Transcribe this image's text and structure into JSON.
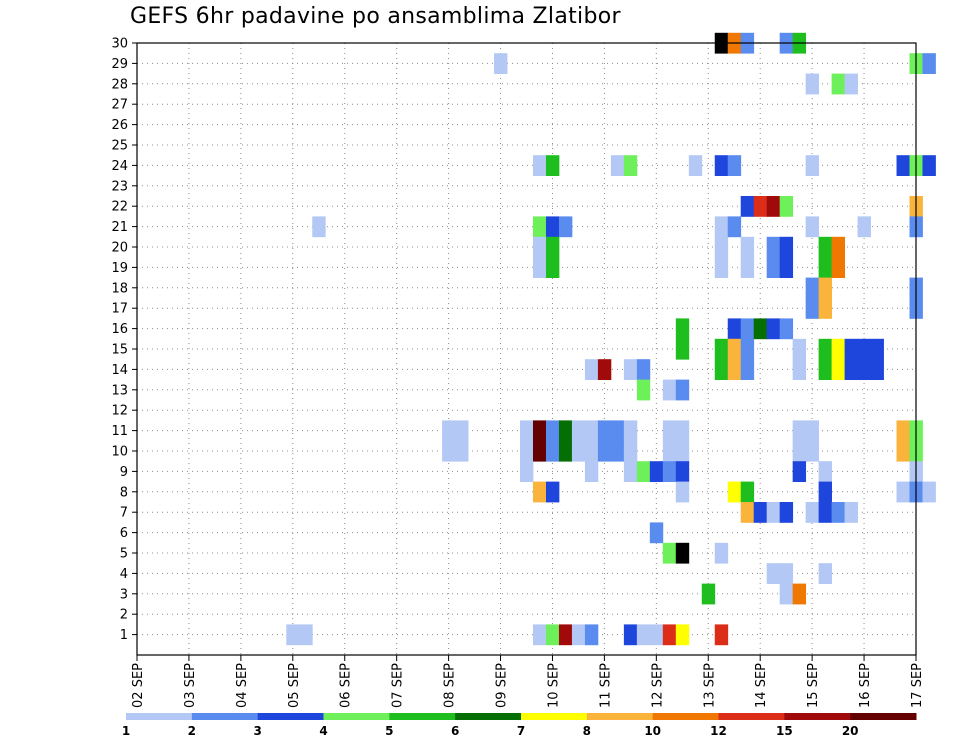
{
  "chart_data": {
    "type": "heatmap",
    "title": "GEFS 6hr padavine po ansamblima Zlatibor",
    "xlabel": "",
    "ylabel": "",
    "y_ticks": [
      1,
      2,
      3,
      4,
      5,
      6,
      7,
      8,
      9,
      10,
      11,
      12,
      13,
      14,
      15,
      16,
      17,
      18,
      19,
      20,
      21,
      22,
      23,
      24,
      25,
      26,
      27,
      28,
      29,
      30
    ],
    "x_ticks": [
      "02 SEP",
      "03 SEP",
      "04 SEP",
      "05 SEP",
      "06 SEP",
      "07 SEP",
      "08 SEP",
      "09 SEP",
      "10 SEP",
      "11 SEP",
      "12 SEP",
      "13 SEP",
      "14 SEP",
      "15 SEP",
      "16 SEP",
      "17 SEP"
    ],
    "grid": true,
    "colorbar": {
      "labels": [
        "1",
        "2",
        "3",
        "4",
        "5",
        "6",
        "7",
        "8",
        "10",
        "12",
        "15",
        "20"
      ],
      "colors": [
        "#b4c8f5",
        "#5a8cf0",
        "#1e46dc",
        "#6ef05a",
        "#1ebe1e",
        "#056e05",
        "#ffff00",
        "#fab43c",
        "#f07800",
        "#dc2d19",
        "#a00a0a",
        "#640000"
      ]
    },
    "cells": [
      [
        30,
        13.25,
        13
      ],
      [
        30,
        13.5,
        9
      ],
      [
        30,
        13.75,
        2
      ],
      [
        30,
        14.5,
        2
      ],
      [
        30,
        14.75,
        5
      ],
      [
        29,
        9.0,
        1
      ],
      [
        29,
        17.0,
        4
      ],
      [
        29,
        17.25,
        2
      ],
      [
        28,
        15.0,
        1
      ],
      [
        28,
        15.5,
        4
      ],
      [
        28,
        15.75,
        1
      ],
      [
        24,
        9.75,
        1
      ],
      [
        24,
        10.0,
        5
      ],
      [
        24,
        11.25,
        1
      ],
      [
        24,
        11.5,
        4
      ],
      [
        24,
        12.75,
        1
      ],
      [
        24,
        13.25,
        3
      ],
      [
        24,
        13.5,
        2
      ],
      [
        24,
        15.0,
        1
      ],
      [
        24,
        16.75,
        3
      ],
      [
        24,
        17.0,
        4
      ],
      [
        24,
        17.25,
        3
      ],
      [
        22,
        13.75,
        3
      ],
      [
        22,
        14.0,
        10
      ],
      [
        22,
        14.25,
        11
      ],
      [
        22,
        14.5,
        4
      ],
      [
        22,
        17.0,
        8
      ],
      [
        21,
        5.5,
        1
      ],
      [
        21,
        9.75,
        4
      ],
      [
        21,
        10.0,
        3
      ],
      [
        21,
        10.25,
        2
      ],
      [
        21,
        13.25,
        1
      ],
      [
        21,
        13.5,
        2
      ],
      [
        21,
        15.0,
        1
      ],
      [
        21,
        16.0,
        1
      ],
      [
        21,
        17.0,
        2
      ],
      [
        20,
        9.75,
        1
      ],
      [
        20,
        10.0,
        5
      ],
      [
        20,
        13.25,
        1
      ],
      [
        20,
        13.75,
        1
      ],
      [
        20,
        14.25,
        2
      ],
      [
        20,
        14.5,
        3
      ],
      [
        20,
        15.25,
        5
      ],
      [
        20,
        15.5,
        9
      ],
      [
        19,
        9.75,
        1
      ],
      [
        19,
        10.0,
        5
      ],
      [
        19,
        13.25,
        1
      ],
      [
        19,
        13.75,
        1
      ],
      [
        19,
        14.25,
        2
      ],
      [
        19,
        14.5,
        3
      ],
      [
        19,
        15.25,
        5
      ],
      [
        19,
        15.5,
        9
      ],
      [
        18,
        15.0,
        2
      ],
      [
        18,
        15.25,
        8
      ],
      [
        18,
        17.0,
        2
      ],
      [
        17,
        15.0,
        2
      ],
      [
        17,
        15.25,
        8
      ],
      [
        17,
        17.0,
        2
      ],
      [
        16,
        12.5,
        5
      ],
      [
        16,
        13.5,
        3
      ],
      [
        16,
        13.75,
        2
      ],
      [
        16,
        14.0,
        6
      ],
      [
        16,
        14.25,
        3
      ],
      [
        16,
        14.5,
        2
      ],
      [
        15,
        12.5,
        5
      ],
      [
        15,
        13.25,
        5
      ],
      [
        15,
        13.5,
        8
      ],
      [
        15,
        13.75,
        2
      ],
      [
        15,
        14.75,
        1
      ],
      [
        15,
        15.25,
        5
      ],
      [
        15,
        15.5,
        7
      ],
      [
        15,
        15.75,
        3
      ],
      [
        15,
        16.0,
        3
      ],
      [
        15,
        16.25,
        3
      ],
      [
        14,
        10.75,
        1
      ],
      [
        14,
        11.0,
        11
      ],
      [
        14,
        11.5,
        1
      ],
      [
        14,
        11.75,
        2
      ],
      [
        14,
        13.25,
        5
      ],
      [
        14,
        13.5,
        8
      ],
      [
        14,
        13.75,
        2
      ],
      [
        14,
        14.75,
        1
      ],
      [
        14,
        15.25,
        5
      ],
      [
        14,
        15.5,
        7
      ],
      [
        14,
        15.75,
        3
      ],
      [
        14,
        16.0,
        3
      ],
      [
        14,
        16.25,
        3
      ],
      [
        13,
        11.75,
        4
      ],
      [
        13,
        12.25,
        1
      ],
      [
        13,
        12.5,
        2
      ],
      [
        11,
        8.0,
        1
      ],
      [
        11,
        8.25,
        1
      ],
      [
        11,
        9.5,
        1
      ],
      [
        11,
        9.75,
        12
      ],
      [
        11,
        10.0,
        2
      ],
      [
        11,
        10.25,
        6
      ],
      [
        11,
        10.5,
        1
      ],
      [
        11,
        10.75,
        1
      ],
      [
        11,
        11.0,
        2
      ],
      [
        11,
        11.25,
        2
      ],
      [
        11,
        11.5,
        1
      ],
      [
        11,
        12.25,
        1
      ],
      [
        11,
        12.5,
        1
      ],
      [
        11,
        14.75,
        1
      ],
      [
        11,
        15.0,
        1
      ],
      [
        11,
        16.75,
        8
      ],
      [
        11,
        17.0,
        4
      ],
      [
        10,
        8.0,
        1
      ],
      [
        10,
        8.25,
        1
      ],
      [
        10,
        9.5,
        1
      ],
      [
        10,
        9.75,
        12
      ],
      [
        10,
        10.0,
        2
      ],
      [
        10,
        10.25,
        6
      ],
      [
        10,
        10.5,
        1
      ],
      [
        10,
        10.75,
        1
      ],
      [
        10,
        11.0,
        2
      ],
      [
        10,
        11.25,
        2
      ],
      [
        10,
        11.5,
        1
      ],
      [
        10,
        12.25,
        1
      ],
      [
        10,
        12.5,
        1
      ],
      [
        10,
        14.75,
        1
      ],
      [
        10,
        15.0,
        1
      ],
      [
        10,
        16.75,
        8
      ],
      [
        10,
        17.0,
        4
      ],
      [
        9,
        9.5,
        1
      ],
      [
        9,
        10.75,
        1
      ],
      [
        9,
        11.5,
        1
      ],
      [
        9,
        11.75,
        4
      ],
      [
        9,
        12.0,
        3
      ],
      [
        9,
        12.25,
        2
      ],
      [
        9,
        12.5,
        3
      ],
      [
        9,
        14.75,
        3
      ],
      [
        9,
        15.25,
        1
      ],
      [
        9,
        17.0,
        1
      ],
      [
        8,
        9.75,
        8
      ],
      [
        8,
        10.0,
        3
      ],
      [
        8,
        12.5,
        1
      ],
      [
        8,
        13.5,
        7
      ],
      [
        8,
        13.75,
        5
      ],
      [
        8,
        15.25,
        3
      ],
      [
        8,
        16.75,
        1
      ],
      [
        8,
        17.0,
        2
      ],
      [
        8,
        17.25,
        1
      ],
      [
        7,
        13.75,
        8
      ],
      [
        7,
        14.0,
        3
      ],
      [
        7,
        14.25,
        1
      ],
      [
        7,
        14.5,
        3
      ],
      [
        7,
        15.0,
        1
      ],
      [
        7,
        15.25,
        3
      ],
      [
        7,
        15.5,
        2
      ],
      [
        7,
        15.75,
        1
      ],
      [
        6,
        12.0,
        2
      ],
      [
        5,
        12.25,
        4
      ],
      [
        5,
        12.5,
        13
      ],
      [
        5,
        13.25,
        1
      ],
      [
        4,
        14.25,
        1
      ],
      [
        4,
        14.5,
        1
      ],
      [
        4,
        15.25,
        1
      ],
      [
        3,
        13.0,
        5
      ],
      [
        3,
        14.5,
        1
      ],
      [
        3,
        14.75,
        9
      ],
      [
        1,
        5.0,
        1
      ],
      [
        1,
        5.25,
        1
      ],
      [
        1,
        9.75,
        1
      ],
      [
        1,
        10.0,
        4
      ],
      [
        1,
        10.25,
        11
      ],
      [
        1,
        10.5,
        1
      ],
      [
        1,
        10.75,
        2
      ],
      [
        1,
        11.5,
        3
      ],
      [
        1,
        11.75,
        1
      ],
      [
        1,
        12.0,
        1
      ],
      [
        1,
        12.25,
        10
      ],
      [
        1,
        12.5,
        7
      ],
      [
        1,
        13.25,
        10
      ]
    ]
  }
}
